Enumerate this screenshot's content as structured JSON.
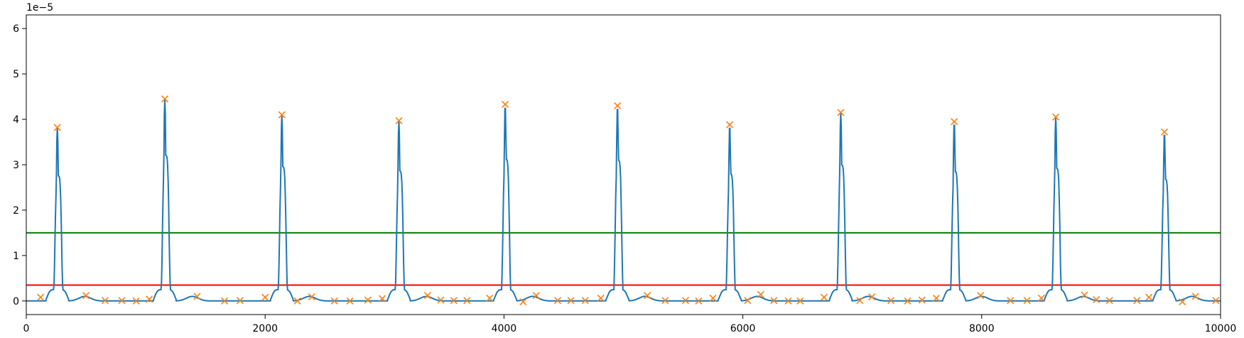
{
  "chart_data": {
    "type": "line",
    "title": "",
    "xlabel": "",
    "ylabel": "",
    "offset_text": "1e−5",
    "xlim": [
      0,
      10000
    ],
    "ylim": [
      -0.3,
      6.3
    ],
    "xticks": [
      0,
      2000,
      4000,
      6000,
      8000,
      10000
    ],
    "yticks": [
      0,
      1,
      2,
      3,
      4,
      5,
      6
    ],
    "grid": false,
    "colors": {
      "signal": "#1f77b4",
      "peaks": "#ff7f0e",
      "upper_threshold": "#008000",
      "lower_threshold": "#ff0000"
    },
    "thresholds": {
      "upper": 1.5,
      "lower": 0.35
    },
    "pulse_centers": [
      260,
      1160,
      2140,
      3120,
      4010,
      4950,
      5890,
      6820,
      7770,
      8620,
      9530
    ],
    "pulse_peaks": [
      3.82,
      4.45,
      4.1,
      3.97,
      4.33,
      4.3,
      3.88,
      4.15,
      3.95,
      4.05,
      3.72
    ],
    "peak_markers": {
      "x": [
        120,
        260,
        500,
        660,
        800,
        920,
        1030,
        1160,
        1430,
        1660,
        1790,
        2000,
        2140,
        2270,
        2390,
        2580,
        2710,
        2860,
        2980,
        3120,
        3360,
        3470,
        3580,
        3690,
        3880,
        4010,
        4160,
        4270,
        4450,
        4560,
        4680,
        4810,
        4950,
        5200,
        5350,
        5520,
        5630,
        5750,
        5890,
        6040,
        6150,
        6260,
        6380,
        6480,
        6680,
        6820,
        6980,
        7080,
        7240,
        7380,
        7500,
        7620,
        7770,
        7990,
        8240,
        8380,
        8500,
        8620,
        8860,
        8960,
        9070,
        9300,
        9400,
        9530,
        9680,
        9790,
        9960
      ],
      "y": [
        0.08,
        3.82,
        0.12,
        0.01,
        0.01,
        0.0,
        0.04,
        4.45,
        0.1,
        0.0,
        0.01,
        0.08,
        4.1,
        0.0,
        0.09,
        0.0,
        0.0,
        0.02,
        0.05,
        3.97,
        0.12,
        0.02,
        0.01,
        0.01,
        0.06,
        4.33,
        -0.02,
        0.12,
        0.01,
        0.01,
        0.01,
        0.06,
        4.3,
        0.12,
        0.01,
        0.01,
        0.0,
        0.06,
        3.88,
        0.01,
        0.14,
        0.01,
        0.0,
        0.0,
        0.08,
        4.15,
        0.01,
        0.09,
        0.01,
        0.0,
        0.02,
        0.06,
        3.95,
        0.12,
        0.01,
        0.01,
        0.06,
        4.05,
        0.13,
        0.03,
        0.01,
        0.01,
        0.08,
        3.72,
        -0.02,
        0.1,
        0.01
      ]
    }
  }
}
